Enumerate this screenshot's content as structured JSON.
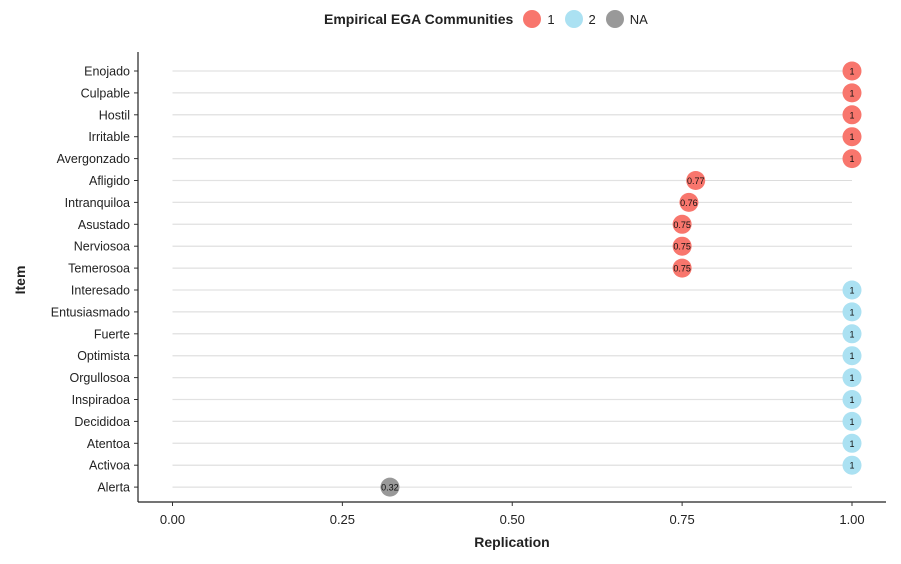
{
  "chart_data": {
    "type": "scatter",
    "subtype": "lollipop",
    "legend": {
      "title": "Empirical EGA Communities",
      "position": "top",
      "entries": [
        {
          "label": "1",
          "color": "#F8766D"
        },
        {
          "label": "2",
          "color": "#ABE1F2"
        },
        {
          "label": "NA",
          "color": "#999999"
        }
      ]
    },
    "xlabel": "Replication",
    "ylabel": "Item",
    "xlim": [
      0,
      1
    ],
    "xticks": [
      "0.00",
      "0.25",
      "0.50",
      "0.75",
      "1.00"
    ],
    "xtick_values": [
      0,
      0.25,
      0.5,
      0.75,
      1.0
    ],
    "grid": "horizontal",
    "items": [
      {
        "label": "Enojado",
        "value": 1,
        "value_label": "1",
        "community": "1"
      },
      {
        "label": "Culpable",
        "value": 1,
        "value_label": "1",
        "community": "1"
      },
      {
        "label": "Hostil",
        "value": 1,
        "value_label": "1",
        "community": "1"
      },
      {
        "label": "Irritable",
        "value": 1,
        "value_label": "1",
        "community": "1"
      },
      {
        "label": "Avergonzado",
        "value": 1,
        "value_label": "1",
        "community": "1"
      },
      {
        "label": "Afligido",
        "value": 0.77,
        "value_label": "0.77",
        "community": "1"
      },
      {
        "label": "Intranquiloa",
        "value": 0.76,
        "value_label": "0.76",
        "community": "1"
      },
      {
        "label": "Asustado",
        "value": 0.75,
        "value_label": "0.75",
        "community": "1"
      },
      {
        "label": "Nerviosoa",
        "value": 0.75,
        "value_label": "0.75",
        "community": "1"
      },
      {
        "label": "Temerosoa",
        "value": 0.75,
        "value_label": "0.75",
        "community": "1"
      },
      {
        "label": "Interesado",
        "value": 1,
        "value_label": "1",
        "community": "2"
      },
      {
        "label": "Entusiasmado",
        "value": 1,
        "value_label": "1",
        "community": "2"
      },
      {
        "label": "Fuerte",
        "value": 1,
        "value_label": "1",
        "community": "2"
      },
      {
        "label": "Optimista",
        "value": 1,
        "value_label": "1",
        "community": "2"
      },
      {
        "label": "Orgullosoa",
        "value": 1,
        "value_label": "1",
        "community": "2"
      },
      {
        "label": "Inspiradoa",
        "value": 1,
        "value_label": "1",
        "community": "2"
      },
      {
        "label": "Decididoa",
        "value": 1,
        "value_label": "1",
        "community": "2"
      },
      {
        "label": "Atentoa",
        "value": 1,
        "value_label": "1",
        "community": "2"
      },
      {
        "label": "Activoa",
        "value": 1,
        "value_label": "1",
        "community": "2"
      },
      {
        "label": "Alerta",
        "value": 0.32,
        "value_label": "0.32",
        "community": "NA"
      }
    ]
  }
}
